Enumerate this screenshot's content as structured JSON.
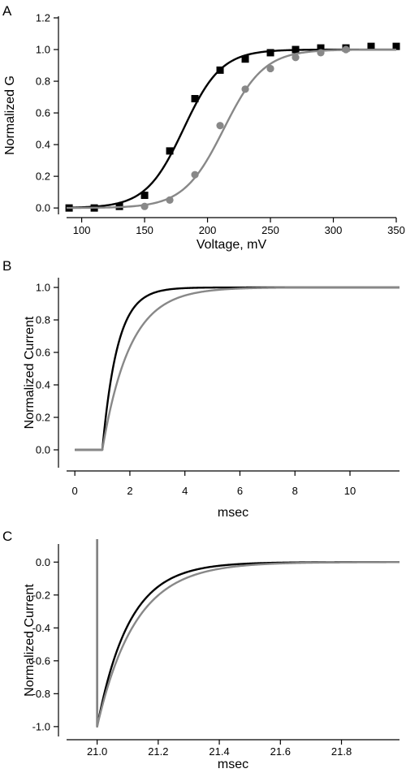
{
  "colors": {
    "black": "#000000",
    "gray": "#888888"
  },
  "chart_data": [
    {
      "panel_label": "A",
      "type": "scatter",
      "xlabel": "Voltage, mV",
      "ylabel": "Normalized G",
      "xlim": [
        88,
        350
      ],
      "ylim": [
        -0.03,
        1.2
      ],
      "xticks": [
        100,
        150,
        200,
        250,
        300,
        350
      ],
      "yticks": [
        0.0,
        0.2,
        0.4,
        0.6,
        0.8,
        1.0,
        1.2
      ],
      "ytick_decimals": 1,
      "grid": false,
      "series": [
        {
          "marker": "square",
          "color": "#000000",
          "points": [
            [
              90,
              0.0
            ],
            [
              110,
              0.0
            ],
            [
              130,
              0.01
            ],
            [
              150,
              0.08
            ],
            [
              170,
              0.36
            ],
            [
              190,
              0.69
            ],
            [
              210,
              0.87
            ],
            [
              230,
              0.94
            ],
            [
              250,
              0.98
            ],
            [
              270,
              1.0
            ],
            [
              290,
              1.01
            ],
            [
              310,
              1.01
            ],
            [
              330,
              1.02
            ],
            [
              350,
              1.02
            ]
          ],
          "fit": {
            "form": "boltzmann",
            "v_half": 181,
            "slope": 15
          }
        },
        {
          "marker": "circle",
          "color": "#888888",
          "points": [
            [
              150,
              0.01
            ],
            [
              170,
              0.05
            ],
            [
              190,
              0.21
            ],
            [
              210,
              0.52
            ],
            [
              230,
              0.75
            ],
            [
              250,
              0.88
            ],
            [
              270,
              0.95
            ],
            [
              290,
              0.98
            ],
            [
              310,
              1.0
            ]
          ],
          "fit": {
            "form": "boltzmann",
            "v_half": 213,
            "slope": 16
          }
        }
      ]
    },
    {
      "panel_label": "B",
      "type": "line",
      "xlabel": "msec",
      "ylabel": "Normalized Current",
      "xlim": [
        -0.3,
        11.8
      ],
      "ylim": [
        -0.1,
        1.05
      ],
      "xticks": [
        0,
        2,
        4,
        6,
        8,
        10
      ],
      "yticks": [
        0.0,
        0.2,
        0.4,
        0.6,
        0.8,
        1.0
      ],
      "ytick_decimals": 1,
      "grid": false,
      "series": [
        {
          "color": "#000000",
          "form": "activation",
          "t0": 1.0,
          "tau": 0.55,
          "x_start": 0,
          "x_end": 11.8
        },
        {
          "color": "#888888",
          "form": "activation",
          "t0": 1.0,
          "tau": 1.0,
          "x_start": 0,
          "x_end": 11.8
        }
      ]
    },
    {
      "panel_label": "C",
      "type": "line",
      "xlabel": "msec",
      "ylabel": "Normalized Current",
      "xlim": [
        20.9,
        21.99
      ],
      "ylim": [
        -1.05,
        0.1
      ],
      "xticks": [
        21.0,
        21.2,
        21.4,
        21.6,
        21.8
      ],
      "yticks": [
        0.0,
        -0.2,
        -0.4,
        -0.6,
        -0.8,
        -1.0
      ],
      "ytick_decimals": 1,
      "grid": false,
      "series": [
        {
          "color": "#000000",
          "form": "tail",
          "t0": 21.0,
          "tau": 0.105,
          "x_end": 21.99
        },
        {
          "color": "#888888",
          "form": "tail",
          "t0": 21.0,
          "tau": 0.125,
          "x_end": 21.99
        }
      ]
    }
  ]
}
